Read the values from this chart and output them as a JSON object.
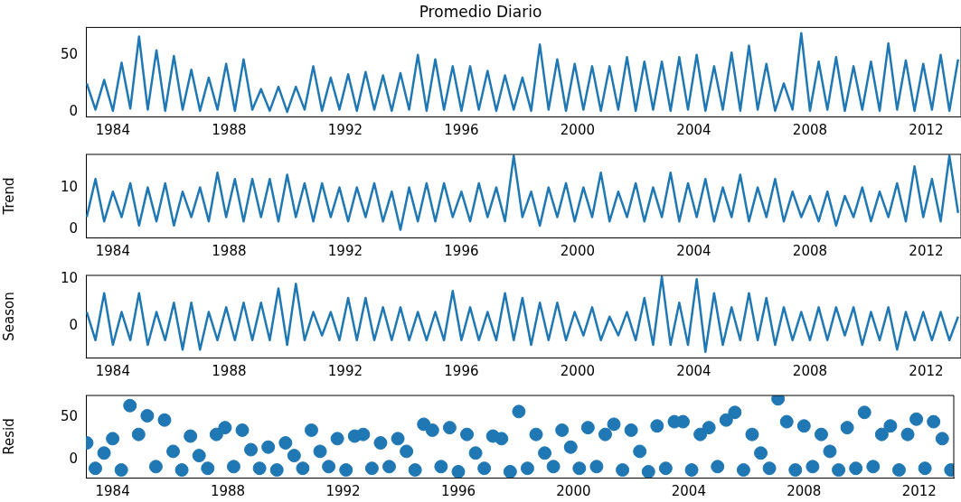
{
  "chart_data": [
    {
      "type": "line",
      "title": "Promedio Diario",
      "xlim": [
        1983.07,
        2013.2
      ],
      "xticks": [
        1984,
        1988,
        1992,
        1996,
        2000,
        2004,
        2008,
        2012
      ],
      "ylim": [
        -4,
        74
      ],
      "yticks": [
        0,
        50
      ],
      "grid": false,
      "legend": false,
      "marker": "none",
      "x": [
        1983.1,
        1983.4,
        1983.7,
        1984,
        1984.3,
        1984.6,
        1984.9,
        1985.2,
        1985.5,
        1985.8,
        1986.1,
        1986.4,
        1986.7,
        1987,
        1987.3,
        1987.6,
        1987.9,
        1988.2,
        1988.5,
        1988.8,
        1989.1,
        1989.4,
        1989.7,
        1990,
        1990.3,
        1990.6,
        1990.9,
        1991.2,
        1991.5,
        1991.8,
        1992.1,
        1992.4,
        1992.7,
        1993,
        1993.3,
        1993.6,
        1993.9,
        1994.2,
        1994.5,
        1994.8,
        1995.1,
        1995.4,
        1995.7,
        1996,
        1996.3,
        1996.6,
        1996.9,
        1997.2,
        1997.5,
        1997.8,
        1998.1,
        1998.4,
        1998.7,
        1999,
        1999.3,
        1999.6,
        1999.9,
        2000.2,
        2000.5,
        2000.8,
        2001.1,
        2001.4,
        2001.7,
        2002,
        2002.3,
        2002.6,
        2002.9,
        2003.2,
        2003.5,
        2003.8,
        2004.1,
        2004.4,
        2004.7,
        2005,
        2005.3,
        2005.6,
        2005.9,
        2006.2,
        2006.5,
        2006.8,
        2007.1,
        2007.4,
        2007.7,
        2008,
        2008.3,
        2008.6,
        2008.9,
        2009.2,
        2009.5,
        2009.8,
        2010.1,
        2010.4,
        2010.7,
        2011,
        2011.3,
        2011.6,
        2011.9,
        2012.2,
        2012.5,
        2012.8,
        2013.1
      ],
      "series": [
        {
          "color": "#1f77b4",
          "values": [
            25,
            2,
            28,
            1,
            43,
            3,
            66,
            2,
            54,
            1,
            49,
            2,
            37,
            1,
            30,
            2,
            42,
            1,
            46,
            2,
            20,
            1,
            22,
            0,
            22,
            2,
            40,
            1,
            30,
            2,
            33,
            1,
            35,
            2,
            32,
            1,
            34,
            2,
            50,
            1,
            46,
            2,
            40,
            1,
            40,
            2,
            36,
            1,
            32,
            2,
            30,
            1,
            59,
            2,
            46,
            1,
            42,
            2,
            40,
            1,
            40,
            2,
            48,
            1,
            44,
            2,
            44,
            1,
            48,
            2,
            50,
            1,
            40,
            2,
            52,
            1,
            58,
            2,
            42,
            1,
            25,
            2,
            69,
            1,
            44,
            2,
            48,
            1,
            40,
            2,
            44,
            1,
            60,
            2,
            45,
            1,
            42,
            2,
            50,
            1,
            46
          ]
        }
      ]
    },
    {
      "type": "line",
      "ylabel": "Trend",
      "xlim": [
        1983.07,
        2013.2
      ],
      "xticks": [
        1984,
        1988,
        1992,
        1996,
        2000,
        2004,
        2008,
        2012
      ],
      "ylim": [
        -1.8,
        17.8
      ],
      "yticks": [
        0,
        10
      ],
      "grid": false,
      "legend": false,
      "marker": "none",
      "x": [
        1983.1,
        1983.4,
        1983.7,
        1984,
        1984.3,
        1984.6,
        1984.9,
        1985.2,
        1985.5,
        1985.8,
        1986.1,
        1986.4,
        1986.7,
        1987,
        1987.3,
        1987.6,
        1987.9,
        1988.2,
        1988.5,
        1988.8,
        1989.1,
        1989.4,
        1989.7,
        1990,
        1990.3,
        1990.6,
        1990.9,
        1991.2,
        1991.5,
        1991.8,
        1992.1,
        1992.4,
        1992.7,
        1993,
        1993.3,
        1993.6,
        1993.9,
        1994.2,
        1994.5,
        1994.8,
        1995.1,
        1995.4,
        1995.7,
        1996,
        1996.3,
        1996.6,
        1996.9,
        1997.2,
        1997.5,
        1997.8,
        1998.1,
        1998.4,
        1998.7,
        1999,
        1999.3,
        1999.6,
        1999.9,
        2000.2,
        2000.5,
        2000.8,
        2001.1,
        2001.4,
        2001.7,
        2002,
        2002.3,
        2002.6,
        2002.9,
        2003.2,
        2003.5,
        2003.8,
        2004.1,
        2004.4,
        2004.7,
        2005,
        2005.3,
        2005.6,
        2005.9,
        2006.2,
        2006.5,
        2006.8,
        2007.1,
        2007.4,
        2007.7,
        2008,
        2008.3,
        2008.6,
        2008.9,
        2009.2,
        2009.5,
        2009.8,
        2010.1,
        2010.4,
        2010.7,
        2011,
        2011.3,
        2011.6,
        2011.9,
        2012.2,
        2012.5,
        2012.8,
        2013.1
      ],
      "series": [
        {
          "color": "#1f77b4",
          "values": [
            3,
            12,
            2,
            9,
            3,
            11,
            1,
            10,
            2,
            11,
            1,
            9,
            3,
            10,
            2,
            13.5,
            3,
            12,
            2,
            12,
            3,
            12,
            2,
            13,
            3,
            11,
            2,
            11,
            3,
            10,
            2,
            10,
            3,
            11,
            2,
            9,
            0,
            10,
            2,
            11,
            2,
            11,
            3,
            9,
            2,
            11,
            3,
            10,
            2,
            17.5,
            3,
            9,
            1,
            10,
            3,
            11,
            2,
            10,
            3,
            13.5,
            2,
            9,
            3,
            11,
            2,
            10,
            3,
            13.5,
            2,
            11,
            3,
            12,
            2,
            10,
            3,
            13,
            2,
            10,
            3,
            12,
            2,
            9,
            3,
            8,
            2,
            9,
            1,
            8,
            3,
            10,
            2,
            9,
            3,
            11,
            2,
            15,
            3,
            12,
            2,
            17.5,
            4
          ]
        }
      ]
    },
    {
      "type": "line",
      "ylabel": "Season",
      "xlim": [
        1983.07,
        2013.2
      ],
      "xticks": [
        1984,
        1988,
        1992,
        1996,
        2000,
        2004,
        2008,
        2012
      ],
      "ylim": [
        -6.7,
        10.8
      ],
      "yticks": [
        0,
        10
      ],
      "grid": false,
      "legend": false,
      "marker": "none",
      "x": [
        1983.1,
        1983.4,
        1983.7,
        1984,
        1984.3,
        1984.6,
        1984.9,
        1985.2,
        1985.5,
        1985.8,
        1986.1,
        1986.4,
        1986.7,
        1987,
        1987.3,
        1987.6,
        1987.9,
        1988.2,
        1988.5,
        1988.8,
        1989.1,
        1989.4,
        1989.7,
        1990,
        1990.3,
        1990.6,
        1990.9,
        1991.2,
        1991.5,
        1991.8,
        1992.1,
        1992.4,
        1992.7,
        1993,
        1993.3,
        1993.6,
        1993.9,
        1994.2,
        1994.5,
        1994.8,
        1995.1,
        1995.4,
        1995.7,
        1996,
        1996.3,
        1996.6,
        1996.9,
        1997.2,
        1997.5,
        1997.8,
        1998.1,
        1998.4,
        1998.7,
        1999,
        1999.3,
        1999.6,
        1999.9,
        2000.2,
        2000.5,
        2000.8,
        2001.1,
        2001.4,
        2001.7,
        2002,
        2002.3,
        2002.6,
        2002.9,
        2003.2,
        2003.5,
        2003.8,
        2004.1,
        2004.4,
        2004.7,
        2005,
        2005.3,
        2005.6,
        2005.9,
        2006.2,
        2006.5,
        2006.8,
        2007.1,
        2007.4,
        2007.7,
        2008,
        2008.3,
        2008.6,
        2008.9,
        2009.2,
        2009.5,
        2009.8,
        2010.1,
        2010.4,
        2010.7,
        2011,
        2011.3,
        2011.6,
        2011.9,
        2012.2,
        2012.5,
        2012.8,
        2013.1
      ],
      "series": [
        {
          "color": "#1f77b4",
          "values": [
            3,
            -3,
            7,
            -4,
            3,
            -3,
            7,
            -4,
            3,
            -3,
            5,
            -5,
            5,
            -5,
            3,
            -3,
            4,
            -3,
            5,
            -3,
            5,
            -3,
            8,
            -4,
            9,
            -3,
            3,
            -2,
            3,
            -3,
            6,
            -3,
            6,
            -3,
            4,
            -3,
            4,
            -3,
            3,
            -3,
            3,
            -3,
            7.5,
            -3,
            4,
            -3,
            3,
            -3,
            7,
            -3,
            6,
            -4,
            5,
            -3,
            5,
            -3,
            3,
            -2,
            4,
            -3,
            2,
            -2,
            3,
            -3,
            6,
            -4,
            10.5,
            -4,
            5,
            -4,
            10,
            -5.5,
            7,
            -4,
            4,
            -3,
            7,
            -3,
            6,
            -4,
            4,
            -3,
            3,
            -3,
            4,
            -3,
            4,
            -2,
            4,
            -4,
            3,
            -3,
            4,
            -5,
            3,
            -3,
            3,
            -3,
            3,
            -3,
            2
          ]
        }
      ]
    },
    {
      "type": "scatter",
      "ylabel": "Resid",
      "xlim": [
        1983.07,
        2013.2
      ],
      "xticks": [
        1984,
        1988,
        1992,
        1996,
        2000,
        2004,
        2008,
        2012
      ],
      "ylim": [
        -21,
        76
      ],
      "yticks": [
        0,
        50
      ],
      "grid": false,
      "legend": false,
      "marker": "circle",
      "x": [
        1983.1,
        1983.4,
        1983.7,
        1984,
        1984.3,
        1984.6,
        1984.9,
        1985.2,
        1985.5,
        1985.8,
        1986.1,
        1986.4,
        1986.7,
        1987,
        1987.3,
        1987.6,
        1987.9,
        1988.2,
        1988.5,
        1988.8,
        1989.1,
        1989.4,
        1989.7,
        1990,
        1990.3,
        1990.6,
        1990.9,
        1991.2,
        1991.5,
        1991.8,
        1992.1,
        1992.4,
        1992.7,
        1993,
        1993.3,
        1993.6,
        1993.9,
        1994.2,
        1994.5,
        1994.8,
        1995.1,
        1995.4,
        1995.7,
        1996,
        1996.3,
        1996.6,
        1996.9,
        1997.2,
        1997.5,
        1997.8,
        1998.1,
        1998.4,
        1998.7,
        1999,
        1999.3,
        1999.6,
        1999.9,
        2000.2,
        2000.5,
        2000.8,
        2001.1,
        2001.4,
        2001.7,
        2002,
        2002.3,
        2002.6,
        2002.9,
        2003.2,
        2003.5,
        2003.8,
        2004.1,
        2004.4,
        2004.7,
        2005,
        2005.3,
        2005.6,
        2005.9,
        2006.2,
        2006.5,
        2006.8,
        2007.1,
        2007.4,
        2007.7,
        2008,
        2008.3,
        2008.6,
        2008.9,
        2009.2,
        2009.5,
        2009.8,
        2010.1,
        2010.4,
        2010.7,
        2011,
        2011.3,
        2011.6,
        2011.9,
        2012.2,
        2012.5,
        2012.8,
        2013.1
      ],
      "series": [
        {
          "color": "#1f77b4",
          "values": [
            20,
            -10,
            8,
            25,
            -12,
            64,
            30,
            52,
            -8,
            47,
            10,
            -12,
            28,
            5,
            -10,
            30,
            38,
            -8,
            35,
            12,
            -10,
            15,
            -12,
            20,
            5,
            -10,
            35,
            10,
            -8,
            25,
            -12,
            28,
            30,
            -10,
            20,
            -8,
            25,
            10,
            -12,
            42,
            35,
            -8,
            38,
            -14,
            30,
            8,
            -10,
            28,
            25,
            -14,
            57,
            -10,
            30,
            8,
            -8,
            35,
            15,
            -10,
            38,
            -8,
            30,
            42,
            -12,
            35,
            10,
            -14,
            40,
            -10,
            45,
            45,
            -12,
            30,
            38,
            -8,
            47,
            56,
            -12,
            30,
            8,
            -10,
            72,
            45,
            -12,
            40,
            -8,
            30,
            10,
            -12,
            38,
            -10,
            56,
            -8,
            30,
            40,
            -12,
            30,
            48,
            -10,
            45,
            25,
            -12
          ]
        }
      ]
    }
  ]
}
